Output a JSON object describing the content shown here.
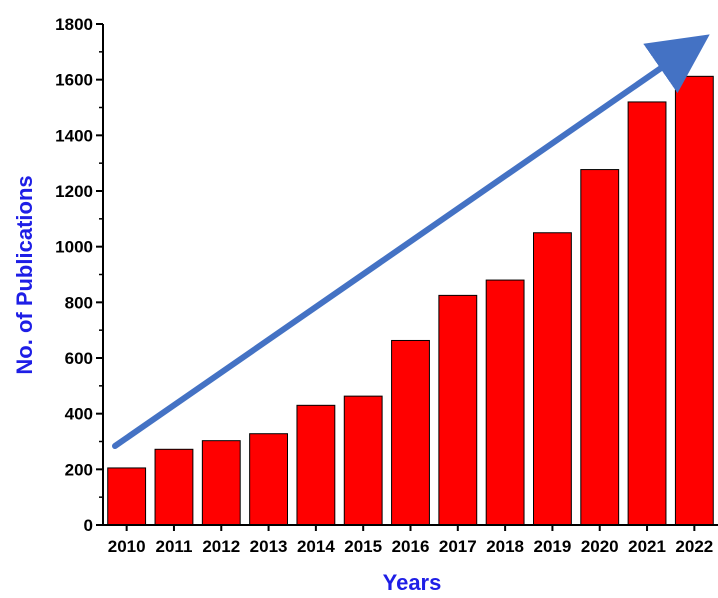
{
  "chart_data": {
    "type": "bar",
    "title": "",
    "xlabel": "Years",
    "ylabel": "No. of Publications",
    "categories": [
      "2010",
      "2011",
      "2012",
      "2013",
      "2014",
      "2015",
      "2016",
      "2017",
      "2018",
      "2019",
      "2020",
      "2021",
      "2022"
    ],
    "values": [
      205,
      272,
      303,
      328,
      430,
      463,
      663,
      825,
      880,
      1050,
      1277,
      1520,
      1612
    ],
    "ylim": [
      0,
      1800
    ],
    "yticks": [
      "0",
      "200",
      "400",
      "600",
      "800",
      "1000",
      "1200",
      "1400",
      "1600",
      "1800"
    ],
    "grid": false,
    "legend": "none",
    "trend_arrow": true,
    "colors": {
      "bar_fill": "#ff0000",
      "bar_stroke": "#000000",
      "axis_title": "#1e1ee6",
      "arrow": "#4472c4"
    }
  }
}
